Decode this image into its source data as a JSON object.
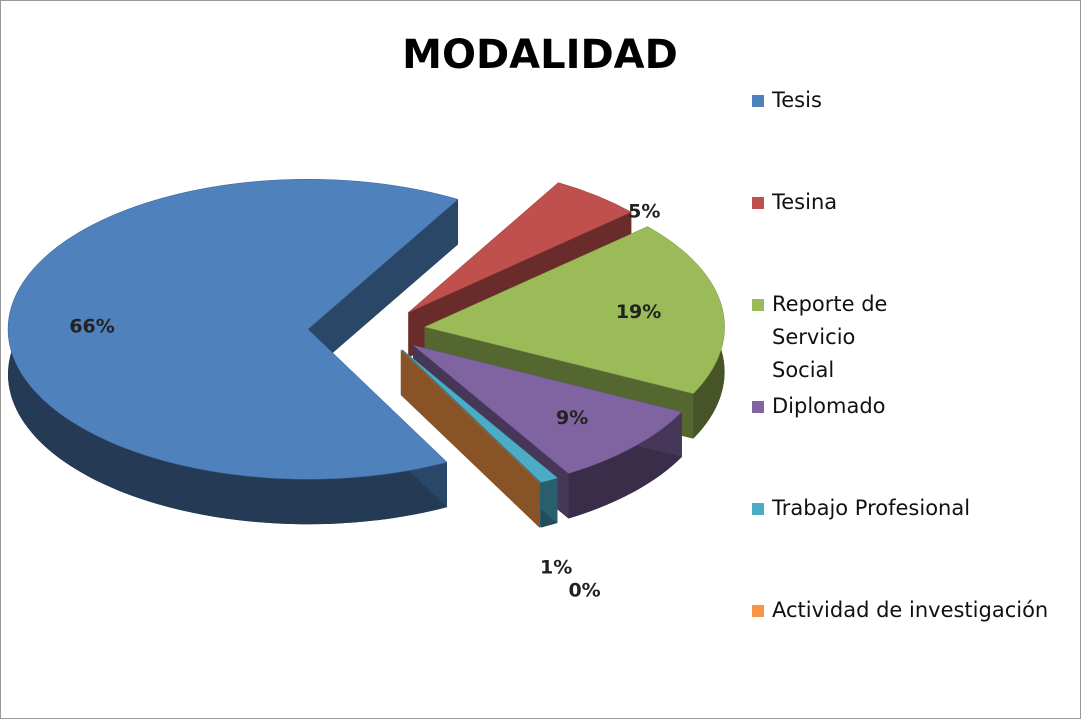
{
  "chart_data": {
    "type": "pie",
    "title": "MODALIDAD",
    "categories": [
      "Tesis",
      "Tesina",
      "Reporte de Servicio Social",
      "Diplomado",
      "Trabajo Profesional",
      "Actividad de investigación"
    ],
    "values": [
      66,
      5,
      19,
      9,
      1,
      0
    ],
    "value_labels": [
      "66%",
      "5%",
      "19%",
      "9%",
      "1%",
      "0%"
    ],
    "colors": [
      "#4f81bd",
      "#c0504d",
      "#9bbb59",
      "#8064a2",
      "#4bacc6",
      "#f79646"
    ],
    "legend": "right"
  }
}
